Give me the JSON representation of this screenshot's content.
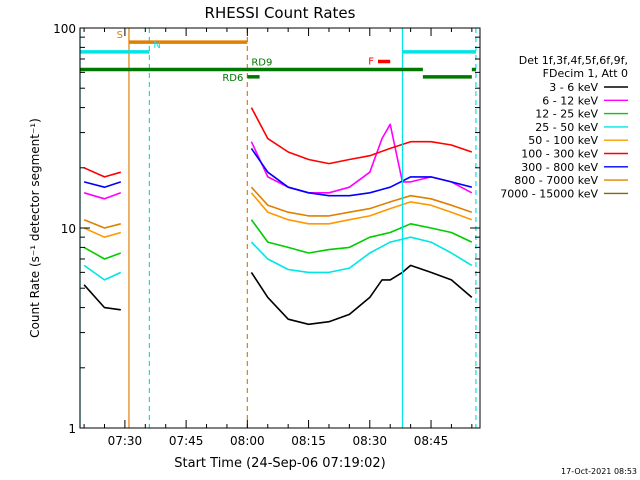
{
  "chart_data": {
    "type": "line",
    "title": "RHESSI Count Rates",
    "xlabel": "Start Time (24-Sep-06 07:19:02)",
    "ylabel": "Count Rate (s⁻¹ detector segment⁻¹)",
    "y_scale": "log",
    "ylim": [
      1,
      100
    ],
    "xlim": [
      "07:19",
      "08:57"
    ],
    "x_ticks": [
      "07:30",
      "07:45",
      "08:00",
      "08:15",
      "08:30",
      "08:45"
    ],
    "y_ticks": [
      "1",
      "10",
      "100"
    ],
    "legend_title": [
      "Det 1f,3f,4f,5f,6f,9f,",
      "FDecim 1, Att 0"
    ],
    "legend_position": "right",
    "series": [
      {
        "name": "3 - 6 keV",
        "color": "#000000",
        "x": [
          "07:20",
          "07:25",
          "07:29",
          "08:01",
          "08:05",
          "08:10",
          "08:15",
          "08:20",
          "08:25",
          "08:30",
          "08:33",
          "08:35",
          "08:38",
          "08:40",
          "08:45",
          "08:50",
          "08:55"
        ],
        "y": [
          5.2,
          4.0,
          3.9,
          6.0,
          4.5,
          3.5,
          3.3,
          3.4,
          3.7,
          4.5,
          5.5,
          5.5,
          6.0,
          6.5,
          6.0,
          5.5,
          4.5
        ]
      },
      {
        "name": "6 - 12 keV",
        "color": "#ff00ff",
        "x": [
          "07:20",
          "07:25",
          "07:29",
          "08:01",
          "08:05",
          "08:10",
          "08:15",
          "08:20",
          "08:25",
          "08:30",
          "08:33",
          "08:35",
          "08:38",
          "08:40",
          "08:45",
          "08:50",
          "08:55"
        ],
        "y": [
          15,
          14,
          15,
          27,
          18,
          16,
          15,
          15,
          16,
          19,
          28,
          33,
          17,
          17,
          18,
          17,
          15
        ]
      },
      {
        "name": "12 - 25 keV",
        "color": "#00cc00",
        "x": [
          "07:20",
          "07:25",
          "07:29",
          "08:01",
          "08:05",
          "08:10",
          "08:15",
          "08:20",
          "08:25",
          "08:30",
          "08:35",
          "08:40",
          "08:45",
          "08:50",
          "08:55"
        ],
        "y": [
          8.0,
          7.0,
          7.5,
          11,
          8.5,
          8.0,
          7.5,
          7.8,
          8.0,
          9.0,
          9.5,
          10.5,
          10,
          9.5,
          8.5
        ]
      },
      {
        "name": "25 - 50 keV",
        "color": "#00e5e5",
        "x": [
          "07:20",
          "07:25",
          "07:29",
          "08:01",
          "08:05",
          "08:10",
          "08:15",
          "08:20",
          "08:25",
          "08:30",
          "08:35",
          "08:40",
          "08:45",
          "08:50",
          "08:55"
        ],
        "y": [
          6.5,
          5.5,
          6.0,
          8.5,
          7.0,
          6.2,
          6.0,
          6.0,
          6.3,
          7.5,
          8.5,
          9.0,
          8.5,
          7.5,
          6.5
        ]
      },
      {
        "name": "50 - 100 keV",
        "color": "#ff9900",
        "x": [
          "07:20",
          "07:25",
          "07:29",
          "08:01",
          "08:05",
          "08:10",
          "08:15",
          "08:20",
          "08:25",
          "08:30",
          "08:35",
          "08:40",
          "08:45",
          "08:50",
          "08:55"
        ],
        "y": [
          10,
          9.0,
          9.5,
          15,
          12,
          11,
          10.5,
          10.5,
          11,
          11.5,
          12.5,
          13.5,
          13,
          12,
          11
        ]
      },
      {
        "name": "100 - 300 keV",
        "color": "#ff0000",
        "x": [
          "07:20",
          "07:25",
          "07:29",
          "08:01",
          "08:05",
          "08:10",
          "08:15",
          "08:20",
          "08:25",
          "08:30",
          "08:35",
          "08:40",
          "08:45",
          "08:50",
          "08:55"
        ],
        "y": [
          20,
          18,
          19,
          40,
          28,
          24,
          22,
          21,
          22,
          23,
          25,
          27,
          27,
          26,
          24
        ]
      },
      {
        "name": "300 - 800 keV",
        "color": "#0000ff",
        "x": [
          "07:20",
          "07:25",
          "07:29",
          "08:01",
          "08:05",
          "08:10",
          "08:15",
          "08:20",
          "08:25",
          "08:30",
          "08:35",
          "08:40",
          "08:45",
          "08:50",
          "08:55"
        ],
        "y": [
          17,
          16,
          17,
          25,
          19,
          16,
          15,
          14.5,
          14.5,
          15,
          16,
          18,
          18,
          17,
          16
        ]
      },
      {
        "name": "800 - 7000 keV",
        "color": "#e08000",
        "x": [
          "07:20",
          "07:25",
          "07:29",
          "08:01",
          "08:05",
          "08:10",
          "08:15",
          "08:20",
          "08:25",
          "08:30",
          "08:35",
          "08:40",
          "08:45",
          "08:50",
          "08:55"
        ],
        "y": [
          11,
          10,
          10.5,
          16,
          13,
          12,
          11.5,
          11.5,
          12,
          12.5,
          13.5,
          14.5,
          14,
          13,
          12
        ]
      },
      {
        "name": "7000 - 15000 keV",
        "color": "#886600",
        "x": [],
        "y": []
      }
    ],
    "vertical_markers": [
      {
        "x": "07:19",
        "color": "#00e5e5",
        "style": "solid"
      },
      {
        "x": "07:31",
        "color": "#e08000",
        "style": "solid"
      },
      {
        "x": "07:36",
        "color": "#00e5e5",
        "style": "dashed"
      },
      {
        "x": "08:00",
        "color": "#e08000",
        "style": "dashed"
      },
      {
        "x": "08:38",
        "color": "#00e5e5",
        "style": "solid"
      },
      {
        "x": "08:56",
        "color": "#00e5e5",
        "style": "dashed"
      }
    ],
    "flag_bars": [
      {
        "label": "S",
        "color": "#e08000",
        "y": 85,
        "x0": "07:31",
        "x1": "08:00"
      },
      {
        "label": "N",
        "color": "#00e5e5",
        "y": 76,
        "x0": "07:19",
        "x1": "07:36"
      },
      {
        "label": "",
        "color": "#00e5e5",
        "y": 76,
        "x0": "08:38",
        "x1": "08:56"
      },
      {
        "label": "F",
        "color": "#ff0000",
        "y": 68,
        "x0": "08:32",
        "x1": "08:35"
      },
      {
        "label": "RD9",
        "color": "#007700",
        "y": 62,
        "x0": "07:19",
        "x1": "08:43"
      },
      {
        "label": "",
        "color": "#007700",
        "y": 62,
        "x0": "08:55",
        "x1": "08:56"
      },
      {
        "label": "RD6",
        "color": "#007700",
        "y": 57,
        "x0": "08:00",
        "x1": "08:03"
      },
      {
        "label": "",
        "color": "#007700",
        "y": 57,
        "x0": "08:43",
        "x1": "08:55"
      }
    ]
  },
  "footer": {
    "timestamp": "17-Oct-2021 08:53"
  }
}
